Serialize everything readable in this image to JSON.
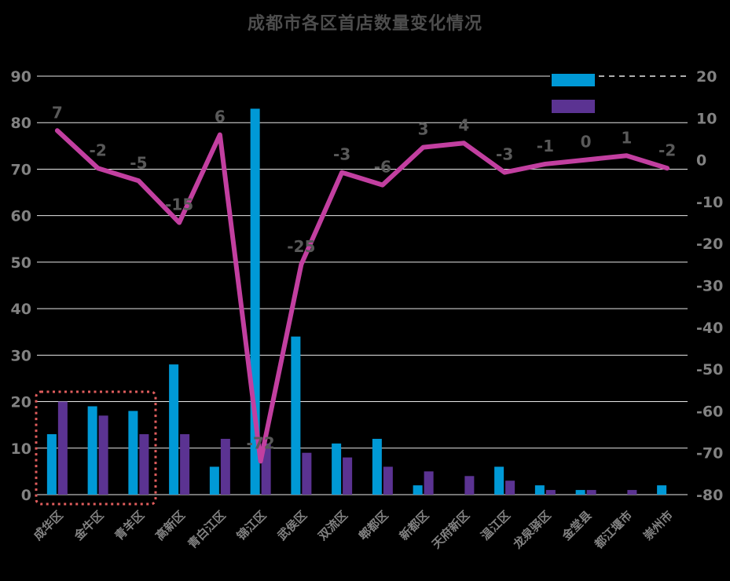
{
  "page": {
    "background": "#000000"
  },
  "chart_data": {
    "type": "bar",
    "subtype": "combo-bar-line-dual-axis",
    "title": "成都市各区首店数量变化情况",
    "categories": [
      "成华区",
      "金牛区",
      "青羊区",
      "高新区",
      "青白江区",
      "锦江区",
      "武侯区",
      "双流区",
      "郫都区",
      "新都区",
      "天府新区",
      "温江区",
      "龙泉驿区",
      "金堂县",
      "都江堰市",
      "崇州市"
    ],
    "series": [
      {
        "name": "blue-bars",
        "type": "bar",
        "axis": "left",
        "color": "#0099d6",
        "values": [
          13,
          19,
          18,
          28,
          6,
          83,
          34,
          11,
          12,
          2,
          0,
          6,
          2,
          1,
          0,
          2
        ]
      },
      {
        "name": "purple-bars",
        "type": "bar",
        "axis": "left",
        "color": "#5b3392",
        "values": [
          20,
          17,
          13,
          13,
          12,
          11,
          9,
          8,
          6,
          5,
          4,
          3,
          1,
          1,
          1,
          0
        ]
      },
      {
        "name": "line",
        "type": "line",
        "axis": "right",
        "color": "#c23fa0",
        "values": [
          7,
          -2,
          -5,
          -15,
          6,
          -72,
          -25,
          -3,
          -6,
          3,
          4,
          -3,
          -1,
          0,
          1,
          -2
        ],
        "show_labels": true
      }
    ],
    "left_axis": {
      "min": 0,
      "max": 90,
      "step": 10,
      "tick_labels": [
        "90",
        "80",
        "70",
        "60",
        "50",
        "40",
        "30",
        "20",
        "10",
        "0"
      ]
    },
    "right_axis": {
      "min": -80,
      "max": 20,
      "step": 10,
      "tick_labels": [
        "20",
        "10",
        "0",
        "-10",
        "-20",
        "-30",
        "-40",
        "-50",
        "-60",
        "-70",
        "-80"
      ]
    },
    "grid": true,
    "legend": {
      "position": "top-right",
      "items": [
        {
          "swatch_color": "#0099d6",
          "label": ""
        },
        {
          "swatch_color": "#5b3392",
          "label": ""
        }
      ]
    },
    "annotations": {
      "highlight_box": {
        "from_category": "成华区",
        "to_category": "青羊区",
        "style": "dotted",
        "color": "#e05d5d"
      }
    }
  },
  "colors": {
    "title": "#4d4d4d",
    "axis_text": "#828282",
    "data_label": "#595959",
    "gridline": "#e8e8e8",
    "blue_bar": "#0099d6",
    "purple_bar": "#5b3392",
    "line": "#c23fa0",
    "highlight_box": "#e05d5d",
    "background": "#000000"
  }
}
